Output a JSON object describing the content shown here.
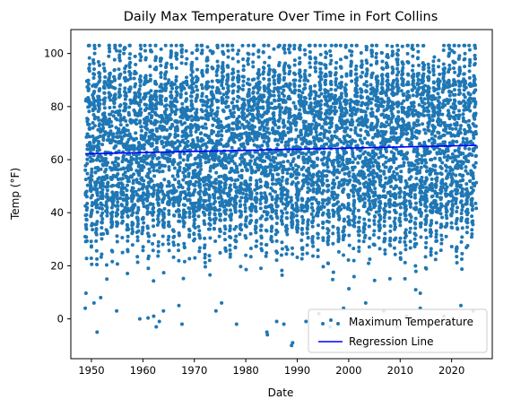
{
  "chart_data": {
    "type": "scatter",
    "title": "Daily Max Temperature Over Time in Fort Collins",
    "xlabel": "Date",
    "ylabel": "Temp (°F)",
    "xlim": [
      1946.0,
      2027.9
    ],
    "ylim": [
      -15.0,
      109.0
    ],
    "x_ticks": [
      "1950",
      "1960",
      "1970",
      "1980",
      "1990",
      "2000",
      "2010",
      "2020"
    ],
    "y_ticks": [
      "0",
      "20",
      "40",
      "60",
      "80",
      "100"
    ],
    "grid": false,
    "legend_position": "lower-right",
    "series": [
      {
        "name": "Maximum Temperature",
        "kind": "scatter",
        "color": "#1f77b4",
        "x_range": [
          1948.8,
          2024.8
        ],
        "typical_band_y": [
          33,
          95
        ],
        "approx_count": 27700,
        "notes": "dense daily observations from 1948.8 to 2024.8"
      },
      {
        "name": "Regression Line",
        "kind": "line",
        "color": "#0000ff",
        "x": [
          1948.8,
          2024.8
        ],
        "y": [
          62.2,
          65.4
        ]
      }
    ],
    "outliers_low": [
      [
        1948.8,
        4
      ],
      [
        1950.5,
        6
      ],
      [
        1951.1,
        -5
      ],
      [
        1951.8,
        8
      ],
      [
        1954.9,
        3
      ],
      [
        1959.4,
        0
      ],
      [
        1962.1,
        1
      ],
      [
        1962.6,
        -3
      ],
      [
        1963.2,
        -1
      ],
      [
        1964.0,
        3
      ],
      [
        1967.6,
        -2
      ],
      [
        1967.0,
        5
      ],
      [
        1974.2,
        3
      ],
      [
        1975.3,
        6
      ],
      [
        1978.2,
        -2
      ],
      [
        1984.1,
        -5
      ],
      [
        1984.2,
        -6
      ],
      [
        1986.0,
        -1
      ],
      [
        1987.4,
        -2
      ],
      [
        1988.9,
        -10
      ],
      [
        1989.1,
        -9
      ],
      [
        1991.7,
        -1
      ],
      [
        1994.2,
        2
      ],
      [
        1996.4,
        -3
      ],
      [
        1999.0,
        4
      ],
      [
        2001.1,
        -2
      ],
      [
        2003.3,
        6
      ],
      [
        2006.8,
        3
      ],
      [
        2009.4,
        -3
      ],
      [
        2011.2,
        1
      ],
      [
        2013.9,
        4
      ],
      [
        2018.5,
        1
      ],
      [
        2021.8,
        5
      ],
      [
        2024.2,
        3
      ]
    ],
    "outliers_high": [
      [
        1954.6,
        102
      ],
      [
        1954.9,
        101
      ],
      [
        1956.3,
        100
      ],
      [
        1973.1,
        101
      ],
      [
        1980.4,
        100
      ],
      [
        1995.7,
        100
      ],
      [
        2000.2,
        101
      ],
      [
        2005.4,
        103
      ],
      [
        2012.3,
        102
      ],
      [
        2020.1,
        101
      ],
      [
        2024.6,
        102
      ]
    ]
  }
}
